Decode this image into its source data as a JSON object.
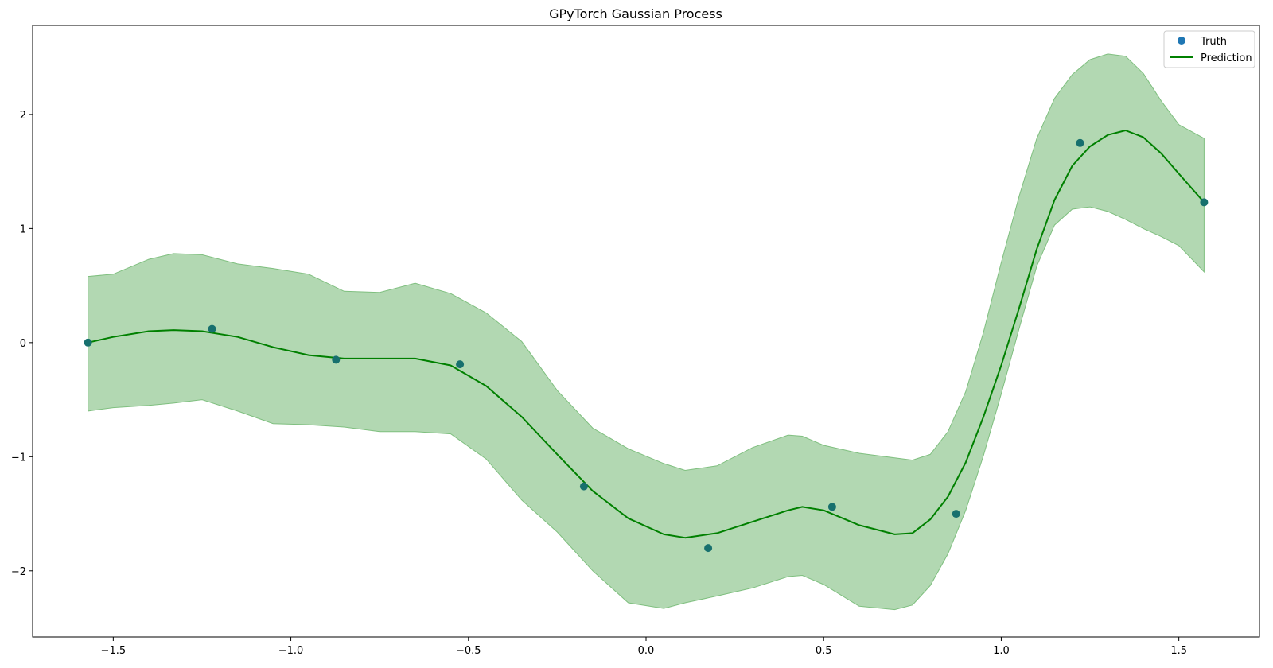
{
  "chart_data": {
    "type": "line",
    "title": "GPyTorch Gaussian Process",
    "xlabel": "",
    "ylabel": "",
    "xlim": [
      -1.727,
      1.727
    ],
    "ylim": [
      -2.58,
      2.78
    ],
    "xticks": [
      -1.5,
      -1.0,
      -0.5,
      0.0,
      0.5,
      1.0,
      1.5
    ],
    "xtick_labels": [
      "−1.5",
      "−1.0",
      "−0.5",
      "0.0",
      "0.5",
      "1.0",
      "1.5"
    ],
    "yticks": [
      -2,
      -1,
      0,
      1,
      2
    ],
    "ytick_labels": [
      "−2",
      "−1",
      "0",
      "1",
      "2"
    ],
    "grid": false,
    "legend": {
      "position": "top-right",
      "entries": [
        {
          "label": "Truth",
          "kind": "scatter",
          "color": "#1f77b4"
        },
        {
          "label": "Prediction",
          "kind": "line",
          "color": "#008000"
        }
      ]
    },
    "colors": {
      "truth": "#1f77b4",
      "truth_overlap": "#17706e",
      "prediction": "#008000",
      "band_fill": "#b2d8b2",
      "band_edge": "#7fbf7f"
    },
    "series": [
      {
        "name": "Truth",
        "type": "scatter",
        "x": [
          -1.571,
          -1.222,
          -0.873,
          -0.524,
          -0.175,
          0.175,
          0.524,
          0.873,
          1.222,
          1.571
        ],
        "y": [
          0.0,
          0.12,
          -0.15,
          -0.19,
          -1.26,
          -1.8,
          -1.44,
          -1.5,
          1.75,
          1.23
        ]
      },
      {
        "name": "Prediction",
        "type": "line",
        "x": [
          -1.571,
          -1.5,
          -1.4,
          -1.33,
          -1.25,
          -1.15,
          -1.05,
          -0.95,
          -0.85,
          -0.75,
          -0.65,
          -0.55,
          -0.45,
          -0.35,
          -0.25,
          -0.15,
          -0.05,
          0.05,
          0.11,
          0.2,
          0.3,
          0.4,
          0.44,
          0.5,
          0.6,
          0.7,
          0.75,
          0.8,
          0.85,
          0.9,
          0.95,
          1.0,
          1.05,
          1.1,
          1.15,
          1.2,
          1.25,
          1.3,
          1.35,
          1.4,
          1.45,
          1.5,
          1.571
        ],
        "y": [
          0.0,
          0.05,
          0.1,
          0.11,
          0.1,
          0.05,
          -0.04,
          -0.11,
          -0.14,
          -0.14,
          -0.14,
          -0.2,
          -0.38,
          -0.65,
          -0.98,
          -1.3,
          -1.54,
          -1.68,
          -1.71,
          -1.67,
          -1.57,
          -1.47,
          -1.44,
          -1.47,
          -1.6,
          -1.68,
          -1.67,
          -1.55,
          -1.35,
          -1.05,
          -0.65,
          -0.2,
          0.3,
          0.82,
          1.25,
          1.55,
          1.72,
          1.82,
          1.86,
          1.8,
          1.66,
          1.48,
          1.23
        ]
      }
    ],
    "confidence_band": {
      "x": [
        -1.571,
        -1.5,
        -1.4,
        -1.33,
        -1.25,
        -1.15,
        -1.05,
        -0.95,
        -0.85,
        -0.75,
        -0.65,
        -0.55,
        -0.45,
        -0.35,
        -0.25,
        -0.15,
        -0.05,
        0.05,
        0.11,
        0.2,
        0.3,
        0.4,
        0.44,
        0.5,
        0.6,
        0.7,
        0.75,
        0.8,
        0.85,
        0.9,
        0.95,
        1.0,
        1.05,
        1.1,
        1.15,
        1.2,
        1.25,
        1.3,
        1.35,
        1.4,
        1.45,
        1.5,
        1.571
      ],
      "lower": [
        -0.6,
        -0.57,
        -0.55,
        -0.53,
        -0.5,
        -0.6,
        -0.71,
        -0.72,
        -0.74,
        -0.78,
        -0.78,
        -0.8,
        -1.02,
        -1.38,
        -1.66,
        -2.0,
        -2.28,
        -2.33,
        -2.28,
        -2.22,
        -2.15,
        -2.05,
        -2.04,
        -2.12,
        -2.31,
        -2.34,
        -2.3,
        -2.13,
        -1.85,
        -1.47,
        -0.99,
        -0.45,
        0.12,
        0.67,
        1.03,
        1.17,
        1.19,
        1.15,
        1.08,
        1.0,
        0.93,
        0.85,
        0.62
      ],
      "upper": [
        0.58,
        0.6,
        0.73,
        0.78,
        0.77,
        0.69,
        0.65,
        0.6,
        0.45,
        0.44,
        0.52,
        0.43,
        0.26,
        0.01,
        -0.42,
        -0.75,
        -0.93,
        -1.06,
        -1.12,
        -1.08,
        -0.92,
        -0.81,
        -0.82,
        -0.9,
        -0.97,
        -1.01,
        -1.03,
        -0.98,
        -0.78,
        -0.43,
        0.09,
        0.7,
        1.28,
        1.79,
        2.14,
        2.35,
        2.48,
        2.53,
        2.51,
        2.36,
        2.12,
        1.91,
        1.79
      ]
    }
  }
}
